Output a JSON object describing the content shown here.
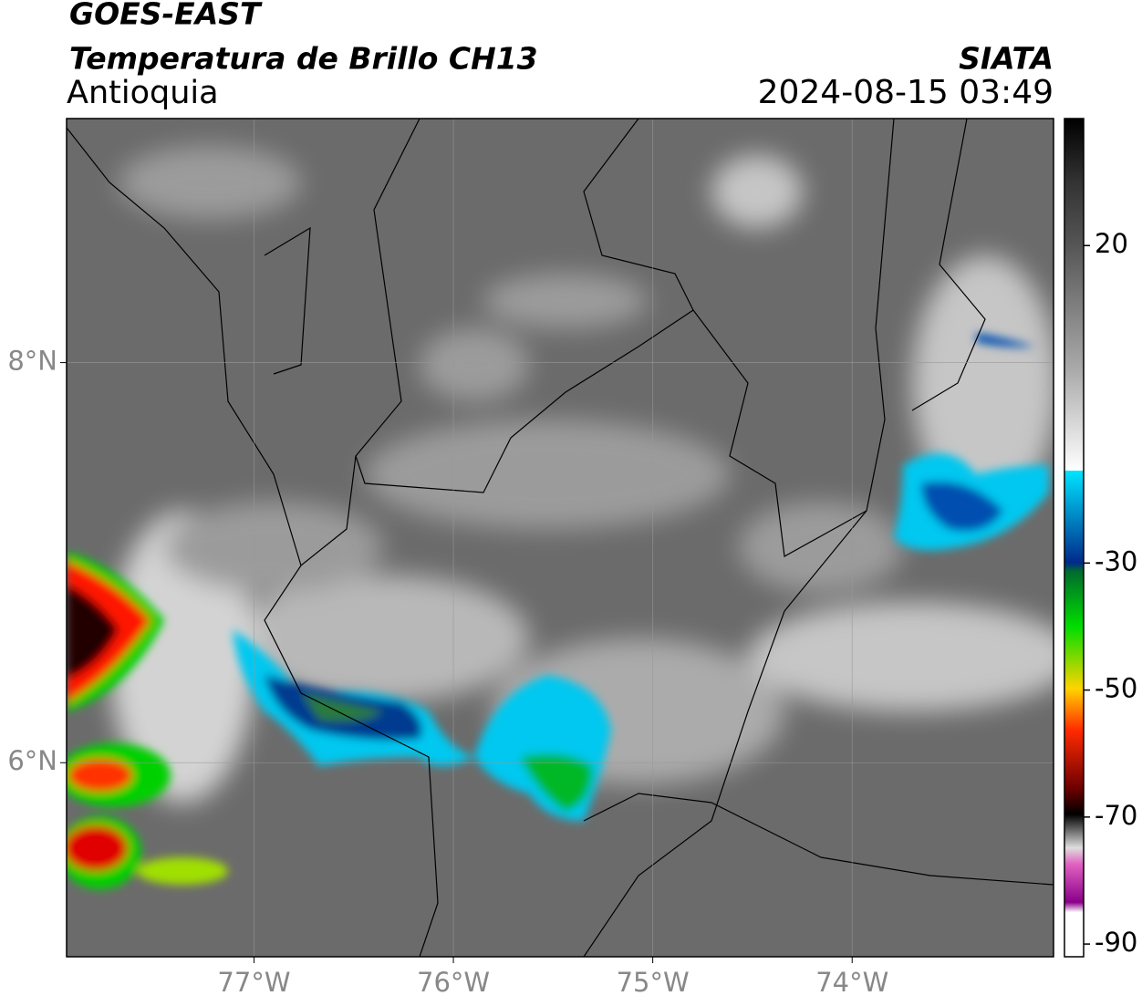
{
  "header": {
    "line1": "GOES-EAST",
    "line2": "Temperatura de Brillo CH13",
    "region": "Antioquia",
    "agency": "SIATA",
    "datetime": "2024-08-15 03:49"
  },
  "map": {
    "lonlim": [
      -77.94,
      -72.99
    ],
    "latlim": [
      5.03,
      9.22
    ],
    "lat_ticks": [
      {
        "value": 8,
        "label": "8°N"
      },
      {
        "value": 6,
        "label": "6°N"
      }
    ],
    "lon_ticks": [
      {
        "value": -77,
        "label": "77°W"
      },
      {
        "value": -76,
        "label": "76°W"
      },
      {
        "value": -75,
        "label": "75°W"
      },
      {
        "value": -74,
        "label": "74°W"
      }
    ]
  },
  "colorbar": {
    "lim": [
      -92,
      40
    ],
    "ticks": [
      20,
      -30,
      -50,
      -70,
      -90
    ]
  }
}
